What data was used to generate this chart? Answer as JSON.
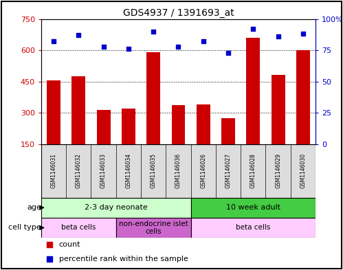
{
  "title": "GDS4937 / 1391693_at",
  "samples": [
    "GSM1146031",
    "GSM1146032",
    "GSM1146033",
    "GSM1146034",
    "GSM1146035",
    "GSM1146036",
    "GSM1146026",
    "GSM1146027",
    "GSM1146028",
    "GSM1146029",
    "GSM1146030"
  ],
  "counts": [
    455,
    475,
    315,
    320,
    590,
    335,
    340,
    275,
    660,
    480,
    600
  ],
  "percentiles": [
    82,
    87,
    78,
    76,
    90,
    78,
    82,
    73,
    92,
    86,
    88
  ],
  "ylim_left": [
    150,
    750
  ],
  "ylim_right": [
    0,
    100
  ],
  "yticks_left": [
    150,
    300,
    450,
    600,
    750
  ],
  "yticks_right": [
    0,
    25,
    50,
    75,
    100
  ],
  "ytick_labels_right": [
    "0",
    "25",
    "50",
    "75",
    "100%"
  ],
  "bar_color": "#cc0000",
  "dot_color": "#0000cc",
  "age_groups": [
    {
      "label": "2-3 day neonate",
      "start": 0,
      "end": 6,
      "color": "#ccffcc"
    },
    {
      "label": "10 week adult",
      "start": 6,
      "end": 11,
      "color": "#44cc44"
    }
  ],
  "cell_type_groups": [
    {
      "label": "beta cells",
      "start": 0,
      "end": 3,
      "color": "#ffccff"
    },
    {
      "label": "non-endocrine islet\ncells",
      "start": 3,
      "end": 6,
      "color": "#cc66cc"
    },
    {
      "label": "beta cells",
      "start": 6,
      "end": 11,
      "color": "#ffccff"
    }
  ],
  "legend_count_label": "count",
  "legend_percentile_label": "percentile rank within the sample",
  "age_label": "age",
  "cell_type_label": "cell type",
  "sample_bg_color": "#dddddd",
  "border_color": "#000000"
}
